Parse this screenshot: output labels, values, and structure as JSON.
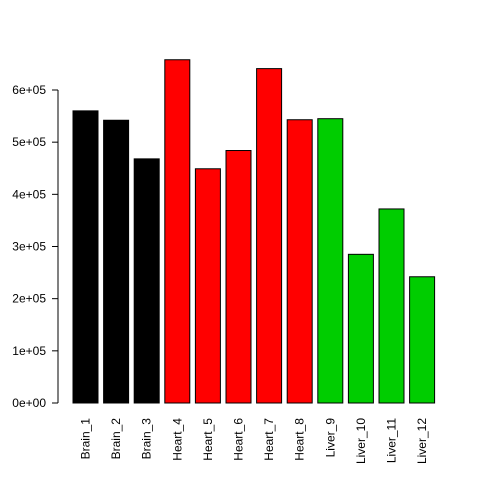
{
  "chart_data": {
    "type": "bar",
    "title": "",
    "xlabel": "",
    "ylabel": "",
    "ylim": [
      0,
      670000
    ],
    "y_ticks": [
      0,
      100000,
      200000,
      300000,
      400000,
      500000,
      600000
    ],
    "y_tick_labels": [
      "0e+00",
      "1e+05",
      "2e+05",
      "3e+05",
      "4e+05",
      "5e+05",
      "6e+05"
    ],
    "categories": [
      "Brain_1",
      "Brain_2",
      "Brain_3",
      "Heart_4",
      "Heart_5",
      "Heart_6",
      "Heart_7",
      "Heart_8",
      "Liver_9",
      "Liver_10",
      "Liver_11",
      "Liver_12"
    ],
    "values": [
      560000,
      542000,
      468000,
      658000,
      449000,
      484000,
      641000,
      543000,
      545000,
      285000,
      372000,
      242000
    ],
    "bar_colors": [
      "#000000",
      "#000000",
      "#000000",
      "#ff0000",
      "#ff0000",
      "#ff0000",
      "#ff0000",
      "#ff0000",
      "#00cd00",
      "#00cd00",
      "#00cd00",
      "#00cd00"
    ],
    "grid": false,
    "legend": "none"
  }
}
